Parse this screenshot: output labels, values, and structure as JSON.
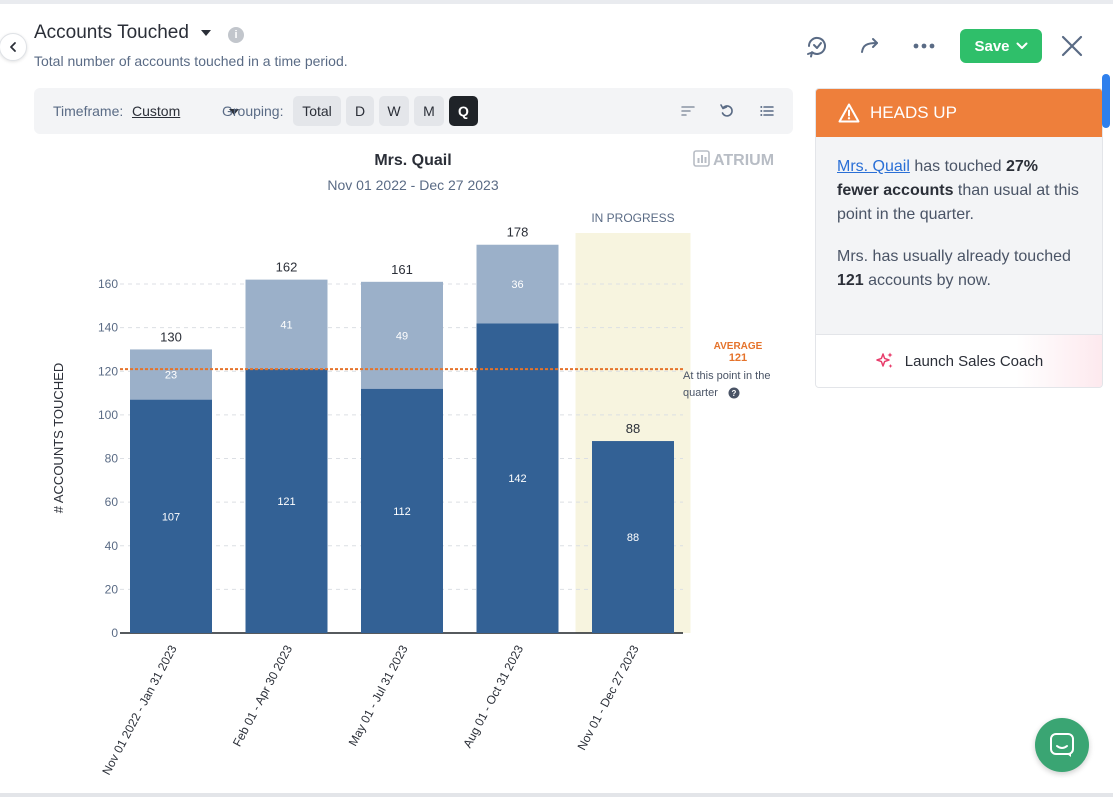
{
  "header": {
    "title": "Accounts Touched",
    "subtitle": "Total number of accounts touched in a time period.",
    "save_label": "Save",
    "icons": [
      "back-chevron-icon",
      "info-icon",
      "sync-icon",
      "share-arrow-icon",
      "more-dots-icon",
      "close-icon"
    ]
  },
  "toolbar": {
    "timeframe_label": "Timeframe:",
    "timeframe_value": "Custom",
    "grouping_label": "Grouping:",
    "grouping_options": [
      "Total",
      "D",
      "W",
      "M",
      "Q"
    ],
    "grouping_selected": "Q"
  },
  "heads_up": {
    "title": "HEADS UP",
    "link_name": "Mrs. Quail",
    "text1_a": " has touched ",
    "text1_bold": "27% fewer accounts",
    "text1_b": " than usual at this point in the quarter.",
    "text2_a": "Mrs. has usually already touched ",
    "text2_bold": "121",
    "text2_b": " accounts by now.",
    "button_label": "Launch Sales Coach",
    "accent_color": "#ee7f3b"
  },
  "colors": {
    "dark_bar": "#336195",
    "light_bar": "#9bb0c9",
    "in_progress_bg": "#f7f4df",
    "average_line": "#e5732b",
    "save_green": "#2fbf6a"
  },
  "chart_data": {
    "type": "bar",
    "title": "Mrs. Quail",
    "subtitle": "Nov 01 2022 - Dec 27 2023",
    "brand": "ATRIUM",
    "ylabel": "# ACCOUNTS TOUCHED",
    "ylim": [
      0,
      160
    ],
    "yticks": [
      0,
      20,
      40,
      60,
      80,
      100,
      120,
      140,
      160
    ],
    "categories": [
      "Nov 01 2022 - Jan 31 2023",
      "Feb 01 - Apr 30 2023",
      "May 01 - Jul 31 2023",
      "Aug 01 - Oct 31 2023",
      "Nov 01 - Dec 27 2023"
    ],
    "series": [
      {
        "values": [
          107,
          121,
          112,
          142,
          88
        ]
      },
      {
        "values": [
          23,
          41,
          49,
          36,
          null
        ]
      }
    ],
    "totals": [
      130,
      162,
      161,
      178,
      88
    ],
    "in_progress_index": 4,
    "in_progress_label": "IN PROGRESS",
    "average": {
      "value": 121,
      "label": "AVERAGE",
      "note": "At this point in the quarter"
    },
    "grid": true
  }
}
